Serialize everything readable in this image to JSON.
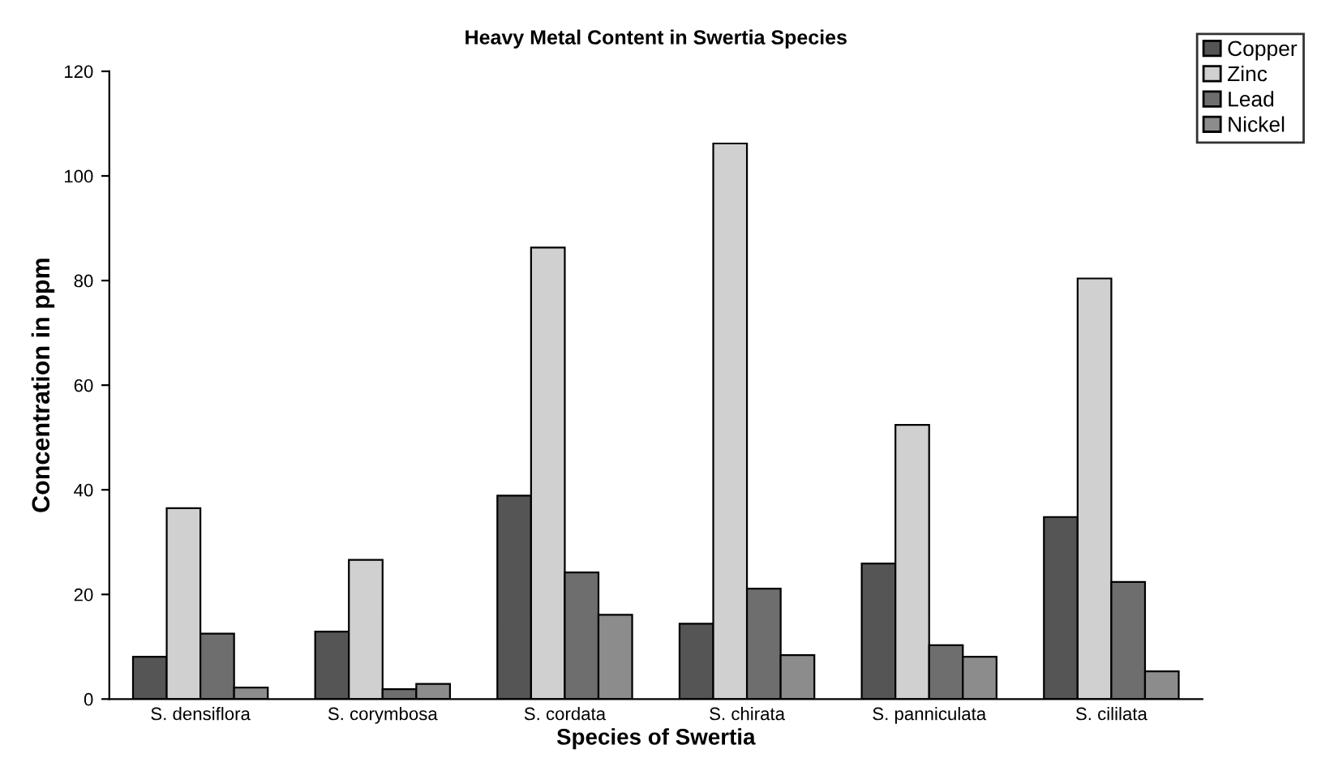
{
  "chart_data": {
    "type": "bar",
    "title": "Heavy Metal Content in Swertia Species",
    "xlabel": "Species of Swertia",
    "ylabel": "Concentration in ppm",
    "categories": [
      "S. densiflora",
      "S. corymbosa",
      "S. cordata",
      "S. chirata",
      "S. panniculata",
      "S. cililata"
    ],
    "series": [
      {
        "name": "Copper",
        "color": "#555555",
        "values": [
          8.1,
          12.9,
          38.9,
          14.4,
          25.9,
          34.8
        ]
      },
      {
        "name": "Zinc",
        "color": "#d0d0d0",
        "values": [
          36.5,
          26.6,
          86.3,
          106.2,
          52.4,
          80.4
        ]
      },
      {
        "name": "Lead",
        "color": "#6e6e6e",
        "values": [
          12.5,
          1.9,
          24.2,
          21.1,
          10.3,
          22.4
        ]
      },
      {
        "name": "Nickel",
        "color": "#8c8c8c",
        "values": [
          2.2,
          2.9,
          16.1,
          8.4,
          8.1,
          5.3
        ]
      }
    ],
    "ylim": [
      0,
      120
    ],
    "yticks": [
      0,
      20,
      40,
      60,
      80,
      100,
      120
    ],
    "grid": false,
    "legend": "top right"
  }
}
